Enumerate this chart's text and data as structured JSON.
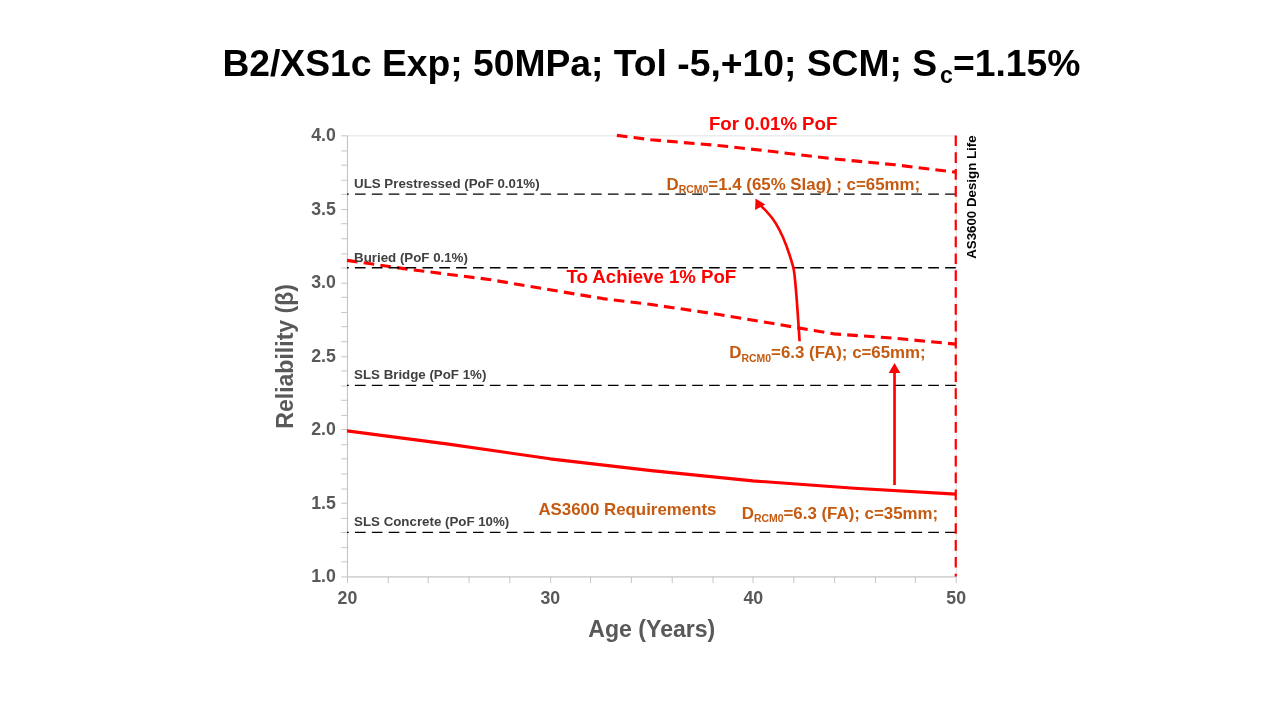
{
  "chart_data": {
    "type": "line",
    "title": "B2/XS1c Exp; 50MPa; Tol -5,+10; SCM; S$_{c}$=1.15%",
    "xlabel": "Age (Years)",
    "ylabel": "Reliability (β)",
    "xlim": [
      20,
      50
    ],
    "ylim": [
      1.0,
      4.0
    ],
    "xticks": [
      20,
      {
        "value": 22,
        "label": null
      },
      {
        "value": 24,
        "label": null
      },
      {
        "value": 26,
        "label": null
      },
      {
        "value": 28,
        "label": null
      },
      30,
      {
        "value": 32,
        "label": null
      },
      {
        "value": 34,
        "label": null
      },
      {
        "value": 36,
        "label": null
      },
      {
        "value": 38,
        "label": null
      },
      40,
      {
        "value": 42,
        "label": null
      },
      {
        "value": 44,
        "label": null
      },
      {
        "value": 46,
        "label": null
      },
      {
        "value": 48,
        "label": null
      },
      50
    ],
    "yticks": [
      {
        "value": 1.0,
        "label": "1.0"
      },
      {
        "value": 1.1,
        "label": null
      },
      {
        "value": 1.2,
        "label": null
      },
      {
        "value": 1.3,
        "label": null
      },
      {
        "value": 1.4,
        "label": null
      },
      {
        "value": 1.5,
        "label": "1.5"
      },
      {
        "value": 1.6,
        "label": null
      },
      {
        "value": 1.7,
        "label": null
      },
      {
        "value": 1.8,
        "label": null
      },
      {
        "value": 1.9,
        "label": null
      },
      {
        "value": 2.0,
        "label": "2.0"
      },
      {
        "value": 2.1,
        "label": null
      },
      {
        "value": 2.2,
        "label": null
      },
      {
        "value": 2.3,
        "label": null
      },
      {
        "value": 2.4,
        "label": null
      },
      {
        "value": 2.5,
        "label": "2.5"
      },
      {
        "value": 2.6,
        "label": null
      },
      {
        "value": 2.7,
        "label": null
      },
      {
        "value": 2.8,
        "label": null
      },
      {
        "value": 2.9,
        "label": null
      },
      {
        "value": 3.0,
        "label": "3.0"
      },
      {
        "value": 3.1,
        "label": null
      },
      {
        "value": 3.2,
        "label": null
      },
      {
        "value": 3.3,
        "label": null
      },
      {
        "value": 3.4,
        "label": null
      },
      {
        "value": 3.5,
        "label": "3.5"
      },
      {
        "value": 3.6,
        "label": null
      },
      {
        "value": 3.7,
        "label": null
      },
      {
        "value": 3.8,
        "label": null
      },
      {
        "value": 3.9,
        "label": null
      },
      {
        "value": 4.0,
        "label": "4.0"
      }
    ],
    "series": [
      {
        "name": "For 0.01% PoF",
        "color": "#ff0000",
        "line_style": "dashed",
        "x": [
          33.3,
          35,
          38.4,
          41,
          44,
          47,
          50
        ],
        "values": [
          4.0,
          3.97,
          3.93,
          3.89,
          3.84,
          3.8,
          3.75
        ]
      },
      {
        "name": "To Achieve 1% PoF",
        "color": "#ff0000",
        "line_style": "dashed",
        "x": [
          20,
          23,
          27,
          30,
          32.6,
          35,
          38.4,
          41,
          44,
          47,
          50
        ],
        "values": [
          3.15,
          3.09,
          3.02,
          2.95,
          2.89,
          2.85,
          2.78,
          2.72,
          2.65,
          2.62,
          2.58
        ]
      },
      {
        "color": "#ff0000",
        "line_style": "solid",
        "x": [
          20,
          25,
          30,
          35,
          40,
          45,
          50
        ],
        "values": [
          1.99,
          1.9,
          1.8,
          1.72,
          1.65,
          1.6,
          1.56
        ]
      }
    ],
    "ref_lines": [
      {
        "axis": "y",
        "value": 3.6,
        "label": "ULS Prestressed (PoF 0.01%)",
        "color": "#000000",
        "line_style": "dashed"
      },
      {
        "axis": "y",
        "value": 3.1,
        "label": "Buried (PoF 0.1%)",
        "color": "#000000",
        "line_style": "dashed"
      },
      {
        "axis": "y",
        "value": 2.3,
        "label": "SLS Bridge (PoF 1%)",
        "color": "#000000",
        "line_style": "dashed"
      },
      {
        "axis": "y",
        "value": 1.3,
        "label": "SLS Concrete (PoF 10%)",
        "color": "#000000",
        "line_style": "dashed"
      },
      {
        "axis": "x",
        "value": 50,
        "label": "AS3600 Design Life",
        "color": "#ff0000",
        "line_style": "dashed"
      }
    ],
    "annotations": [
      "AS3600 Requirements",
      "D$_{RCM0}$=6.3 (FA); c=35mm;",
      "D$_{RCM0}$=6.3 (FA); c=65mm;",
      "D$_{RCM0}$=1.4 (65% Slag) ; c=65mm;"
    ]
  }
}
